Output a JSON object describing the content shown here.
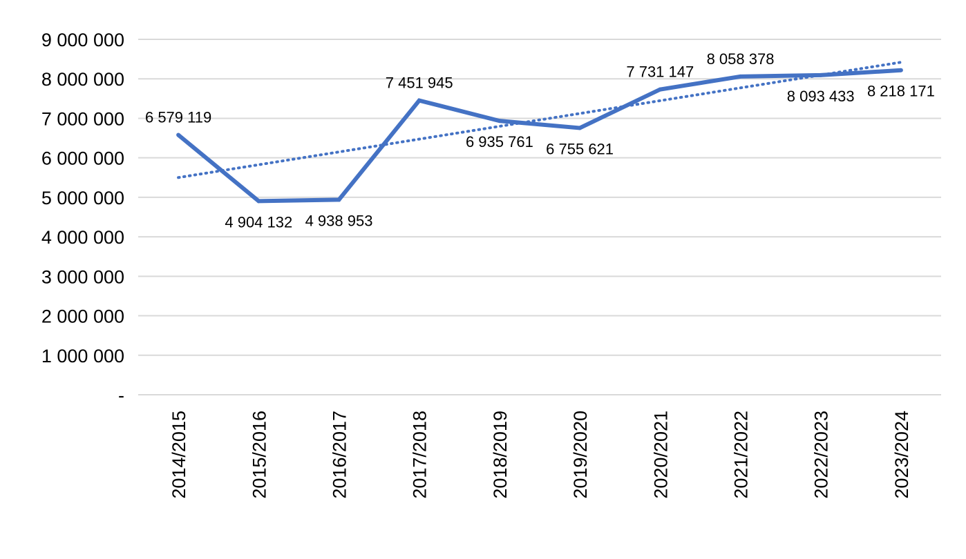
{
  "chart_data": {
    "type": "line",
    "categories": [
      "2014/2015",
      "2015/2016",
      "2016/2017",
      "2017/2018",
      "2018/2019",
      "2019/2020",
      "2020/2021",
      "2021/2022",
      "2022/2023",
      "2023/2024"
    ],
    "series": [
      {
        "values": [
          6579119,
          4904132,
          4938953,
          7451945,
          6935761,
          6755621,
          7731147,
          8058378,
          8093433,
          8218171
        ],
        "data_labels": [
          "6 579 119",
          "4 904 132",
          "4 938 953",
          "7 451 945",
          "6 935 761",
          "6 755 621",
          "7 731 147",
          "8 058 378",
          "8 093 433",
          "8 218 171"
        ],
        "color": "#4472C4",
        "style": "solid"
      }
    ],
    "trendline": {
      "type": "linear",
      "style": "dotted",
      "color": "#4472C4",
      "from": 5500000,
      "to": 8420000
    },
    "y_ticks": [
      0,
      1000000,
      2000000,
      3000000,
      4000000,
      5000000,
      6000000,
      7000000,
      8000000,
      9000000
    ],
    "y_tick_labels": [
      "-",
      "1 000 000",
      "2 000 000",
      "3 000 000",
      "4 000 000",
      "5 000 000",
      "6 000 000",
      "7 000 000",
      "8 000 000",
      "9 000 000"
    ],
    "ylim": [
      0,
      9000000
    ],
    "grid": true,
    "title": "",
    "xlabel": "",
    "ylabel": ""
  }
}
